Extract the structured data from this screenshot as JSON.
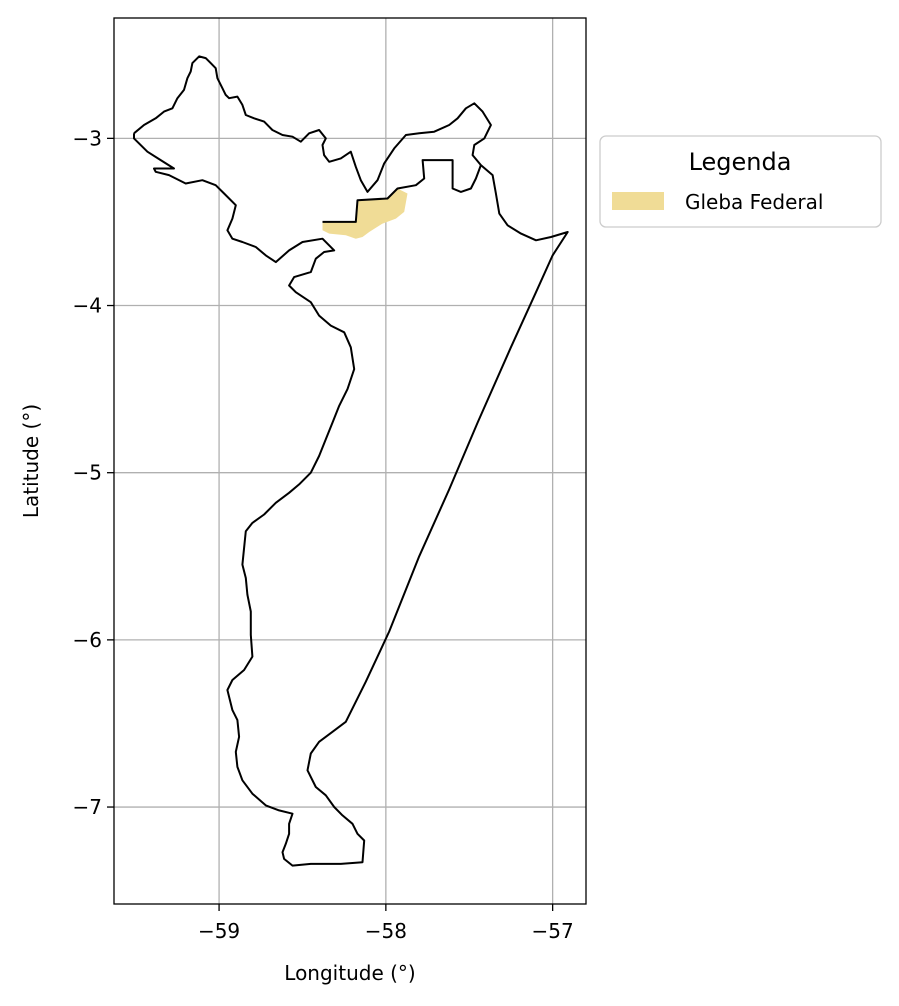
{
  "chart_data": {
    "type": "map",
    "xlabel": "Longitude (°)",
    "ylabel": "Latitude (°)",
    "xlim": [
      -59.63,
      -56.8
    ],
    "ylim": [
      -7.58,
      -2.28
    ],
    "xticks": [
      {
        "value": -59,
        "label": "−59"
      },
      {
        "value": -58,
        "label": "−58"
      },
      {
        "value": -57,
        "label": "−57"
      }
    ],
    "yticks": [
      {
        "value": -3,
        "label": "−3"
      },
      {
        "value": -4,
        "label": "−4"
      },
      {
        "value": -5,
        "label": "−5"
      },
      {
        "value": -6,
        "label": "−6"
      },
      {
        "value": -7,
        "label": "−7"
      }
    ],
    "grid": true,
    "legend": {
      "title": "Legenda",
      "placement": "outside-right-top",
      "entries": [
        {
          "label": "Gleba Federal",
          "color": "#f0dc96"
        }
      ]
    },
    "layers": [
      {
        "name": "Gleba Federal",
        "kind": "polygon",
        "fill": "#f0dc96",
        "stroke": "none",
        "coords": [
          [
            -58.38,
            -3.5
          ],
          [
            -58.18,
            -3.5
          ],
          [
            -58.17,
            -3.37
          ],
          [
            -57.99,
            -3.36
          ],
          [
            -57.93,
            -3.3
          ],
          [
            -57.87,
            -3.33
          ],
          [
            -57.89,
            -3.44
          ],
          [
            -57.94,
            -3.48
          ],
          [
            -58.02,
            -3.51
          ],
          [
            -58.1,
            -3.56
          ],
          [
            -58.14,
            -3.59
          ],
          [
            -58.18,
            -3.6
          ],
          [
            -58.24,
            -3.58
          ],
          [
            -58.34,
            -3.57
          ],
          [
            -58.38,
            -3.55
          ]
        ]
      },
      {
        "name": "boundary",
        "kind": "line",
        "stroke": "#000000",
        "coords": [
          [
            -59.51,
            -2.97
          ],
          [
            -59.45,
            -2.92
          ],
          [
            -59.38,
            -2.88
          ],
          [
            -59.33,
            -2.84
          ],
          [
            -59.28,
            -2.82
          ],
          [
            -59.25,
            -2.76
          ],
          [
            -59.21,
            -2.71
          ],
          [
            -59.19,
            -2.64
          ],
          [
            -59.17,
            -2.6
          ],
          [
            -59.16,
            -2.55
          ],
          [
            -59.12,
            -2.51
          ],
          [
            -59.08,
            -2.52
          ],
          [
            -59.05,
            -2.55
          ],
          [
            -59.02,
            -2.58
          ],
          [
            -59.01,
            -2.64
          ],
          [
            -58.98,
            -2.7
          ],
          [
            -58.96,
            -2.74
          ],
          [
            -58.94,
            -2.76
          ],
          [
            -58.89,
            -2.75
          ],
          [
            -58.86,
            -2.8
          ],
          [
            -58.84,
            -2.86
          ],
          [
            -58.79,
            -2.88
          ],
          [
            -58.73,
            -2.9
          ],
          [
            -58.68,
            -2.95
          ],
          [
            -58.62,
            -2.98
          ],
          [
            -58.56,
            -2.99
          ],
          [
            -58.51,
            -3.02
          ],
          [
            -58.46,
            -2.97
          ],
          [
            -58.4,
            -2.95
          ],
          [
            -58.36,
            -3.0
          ],
          [
            -58.38,
            -3.04
          ],
          [
            -58.37,
            -3.1
          ],
          [
            -58.34,
            -3.14
          ],
          [
            -58.27,
            -3.12
          ],
          [
            -58.21,
            -3.08
          ],
          [
            -58.18,
            -3.17
          ],
          [
            -58.15,
            -3.25
          ],
          [
            -58.11,
            -3.32
          ],
          [
            -58.05,
            -3.25
          ],
          [
            -58.01,
            -3.15
          ],
          [
            -57.95,
            -3.06
          ],
          [
            -57.88,
            -2.98
          ],
          [
            -57.8,
            -2.97
          ],
          [
            -57.71,
            -2.96
          ],
          [
            -57.62,
            -2.92
          ],
          [
            -57.57,
            -2.88
          ],
          [
            -57.52,
            -2.82
          ],
          [
            -57.47,
            -2.79
          ],
          [
            -57.42,
            -2.84
          ],
          [
            -57.37,
            -2.92
          ],
          [
            -57.41,
            -3.0
          ],
          [
            -57.47,
            -3.04
          ],
          [
            -57.48,
            -3.1
          ],
          [
            -57.43,
            -3.16
          ],
          [
            -57.36,
            -3.22
          ],
          [
            -57.34,
            -3.33
          ],
          [
            -57.32,
            -3.45
          ],
          [
            -57.27,
            -3.52
          ],
          [
            -57.19,
            -3.57
          ],
          [
            -57.1,
            -3.61
          ],
          [
            -57.01,
            -3.59
          ],
          [
            -56.91,
            -3.56
          ],
          [
            -57.0,
            -3.7
          ],
          [
            -57.1,
            -3.92
          ],
          [
            -57.25,
            -4.25
          ],
          [
            -57.45,
            -4.7
          ],
          [
            -57.62,
            -5.1
          ],
          [
            -57.8,
            -5.5
          ],
          [
            -57.98,
            -5.95
          ],
          [
            -58.12,
            -6.25
          ],
          [
            -58.24,
            -6.49
          ],
          [
            -58.32,
            -6.55
          ],
          [
            -58.4,
            -6.61
          ],
          [
            -58.45,
            -6.68
          ],
          [
            -58.47,
            -6.78
          ],
          [
            -58.42,
            -6.88
          ],
          [
            -58.36,
            -6.93
          ],
          [
            -58.31,
            -7.0
          ],
          [
            -58.26,
            -7.05
          ],
          [
            -58.2,
            -7.1
          ],
          [
            -58.17,
            -7.16
          ],
          [
            -58.13,
            -7.2
          ],
          [
            -58.14,
            -7.33
          ],
          [
            -58.27,
            -7.34
          ],
          [
            -58.45,
            -7.34
          ],
          [
            -58.56,
            -7.35
          ],
          [
            -58.61,
            -7.31
          ],
          [
            -58.62,
            -7.27
          ],
          [
            -58.6,
            -7.22
          ],
          [
            -58.58,
            -7.16
          ],
          [
            -58.58,
            -7.1
          ],
          [
            -58.56,
            -7.04
          ],
          [
            -58.64,
            -7.02
          ],
          [
            -58.72,
            -6.99
          ],
          [
            -58.8,
            -6.92
          ],
          [
            -58.86,
            -6.84
          ],
          [
            -58.89,
            -6.76
          ],
          [
            -58.9,
            -6.67
          ],
          [
            -58.88,
            -6.58
          ],
          [
            -58.89,
            -6.48
          ],
          [
            -58.92,
            -6.42
          ],
          [
            -58.95,
            -6.3
          ],
          [
            -58.92,
            -6.24
          ],
          [
            -58.85,
            -6.18
          ],
          [
            -58.8,
            -6.1
          ],
          [
            -58.81,
            -5.97
          ],
          [
            -58.81,
            -5.83
          ],
          [
            -58.83,
            -5.73
          ],
          [
            -58.84,
            -5.63
          ],
          [
            -58.86,
            -5.55
          ],
          [
            -58.85,
            -5.45
          ],
          [
            -58.84,
            -5.35
          ],
          [
            -58.8,
            -5.3
          ],
          [
            -58.73,
            -5.25
          ],
          [
            -58.66,
            -5.18
          ],
          [
            -58.58,
            -5.12
          ],
          [
            -58.52,
            -5.07
          ],
          [
            -58.45,
            -5.0
          ],
          [
            -58.4,
            -4.9
          ],
          [
            -58.36,
            -4.8
          ],
          [
            -58.32,
            -4.7
          ],
          [
            -58.28,
            -4.6
          ],
          [
            -58.23,
            -4.5
          ],
          [
            -58.19,
            -4.38
          ],
          [
            -58.21,
            -4.25
          ],
          [
            -58.25,
            -4.16
          ],
          [
            -58.33,
            -4.12
          ],
          [
            -58.4,
            -4.06
          ],
          [
            -58.45,
            -3.98
          ],
          [
            -58.54,
            -3.92
          ],
          [
            -58.58,
            -3.88
          ],
          [
            -58.55,
            -3.83
          ],
          [
            -58.45,
            -3.8
          ],
          [
            -58.42,
            -3.72
          ],
          [
            -58.37,
            -3.68
          ],
          [
            -58.31,
            -3.67
          ],
          [
            -58.38,
            -3.6
          ],
          [
            -58.5,
            -3.62
          ],
          [
            -58.58,
            -3.67
          ],
          [
            -58.66,
            -3.74
          ],
          [
            -58.72,
            -3.7
          ],
          [
            -58.78,
            -3.65
          ],
          [
            -58.86,
            -3.62
          ],
          [
            -58.92,
            -3.6
          ],
          [
            -58.95,
            -3.55
          ],
          [
            -58.92,
            -3.48
          ],
          [
            -58.9,
            -3.4
          ],
          [
            -58.97,
            -3.33
          ],
          [
            -59.02,
            -3.28
          ],
          [
            -59.1,
            -3.25
          ],
          [
            -59.2,
            -3.27
          ],
          [
            -59.3,
            -3.22
          ],
          [
            -59.38,
            -3.2
          ],
          [
            -59.39,
            -3.18
          ],
          [
            -59.27,
            -3.18
          ],
          [
            -59.35,
            -3.13
          ],
          [
            -59.43,
            -3.08
          ],
          [
            -59.51,
            -3.0
          ],
          [
            -59.51,
            -2.97
          ]
        ]
      },
      {
        "name": "inner-boundary",
        "kind": "line",
        "stroke": "#000000",
        "coords": [
          [
            -58.38,
            -3.5
          ],
          [
            -58.18,
            -3.5
          ],
          [
            -58.17,
            -3.37
          ],
          [
            -57.99,
            -3.36
          ],
          [
            -57.93,
            -3.3
          ],
          [
            -57.82,
            -3.28
          ],
          [
            -57.77,
            -3.24
          ],
          [
            -57.78,
            -3.13
          ],
          [
            -57.6,
            -3.13
          ],
          [
            -57.6,
            -3.3
          ],
          [
            -57.55,
            -3.32
          ],
          [
            -57.49,
            -3.3
          ],
          [
            -57.46,
            -3.24
          ],
          [
            -57.43,
            -3.16
          ]
        ]
      }
    ]
  }
}
